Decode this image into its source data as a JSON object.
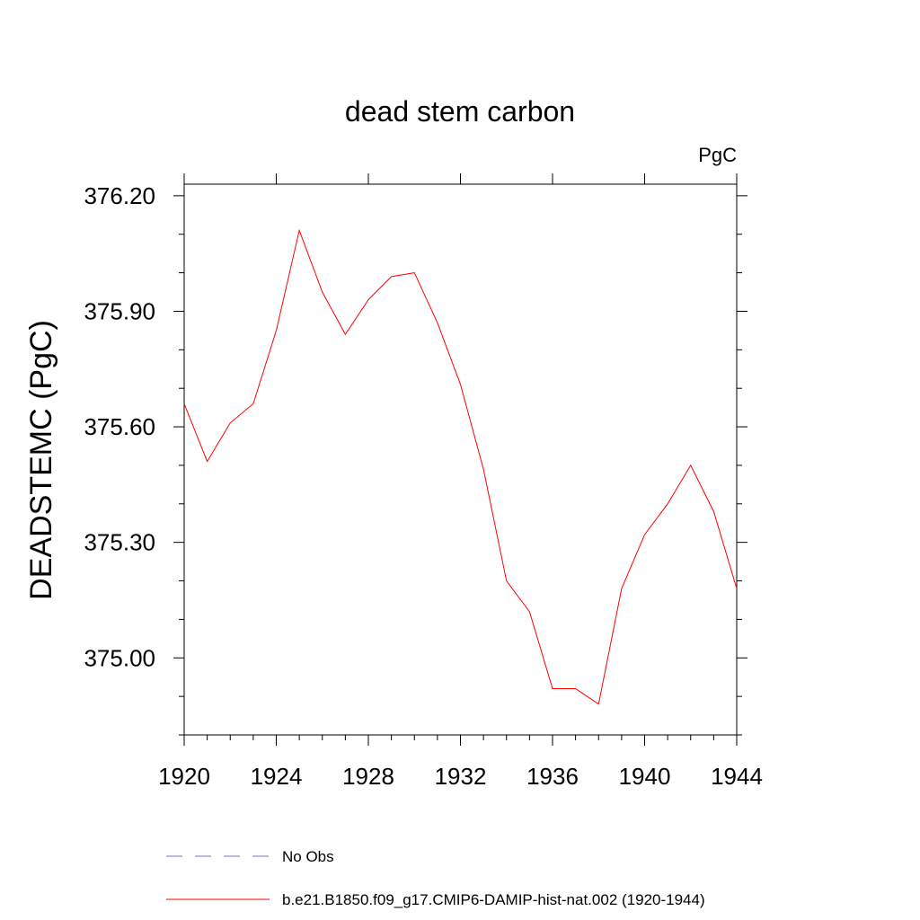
{
  "chart_data": {
    "type": "line",
    "title": "dead stem carbon",
    "units_label": "PgC",
    "ylabel": "DEADSTEMC  (PgC)",
    "xlabel": "",
    "xlim": [
      1920,
      1944
    ],
    "ylim": [
      374.8,
      376.23
    ],
    "x_ticks": [
      1920,
      1924,
      1928,
      1932,
      1936,
      1940,
      1944
    ],
    "x_tick_labels": [
      "1920",
      "1924",
      "1928",
      "1932",
      "1936",
      "1940",
      "1944"
    ],
    "y_ticks": [
      375.0,
      375.3,
      375.6,
      375.9,
      376.2
    ],
    "y_tick_labels": [
      "375.00",
      "375.30",
      "375.60",
      "375.90",
      "376.20"
    ],
    "grid": false,
    "legend_position": "bottom",
    "series": [
      {
        "name": "b.e21.B1850.f09_g17.CMIP6-DAMIP-hist-nat.002 (1920-1944)",
        "color": "#ff0000",
        "style": "solid",
        "x": [
          1920,
          1921,
          1922,
          1923,
          1924,
          1925,
          1926,
          1927,
          1928,
          1929,
          1930,
          1931,
          1932,
          1933,
          1934,
          1935,
          1936,
          1937,
          1938,
          1939,
          1940,
          1941,
          1942,
          1943,
          1944
        ],
        "y": [
          375.66,
          375.51,
          375.61,
          375.66,
          375.85,
          376.11,
          375.95,
          375.84,
          375.93,
          375.99,
          376.0,
          375.87,
          375.71,
          375.49,
          375.2,
          375.12,
          374.92,
          374.92,
          374.88,
          375.18,
          375.32,
          375.4,
          375.5,
          375.38,
          375.18
        ]
      }
    ],
    "legend": [
      {
        "label": "No Obs",
        "color": "#7b6fd6",
        "style": "dashed"
      },
      {
        "label": "b.e21.B1850.f09_g17.CMIP6-DAMIP-hist-nat.002 (1920-1944)",
        "color": "#ff0000",
        "style": "solid"
      }
    ]
  }
}
